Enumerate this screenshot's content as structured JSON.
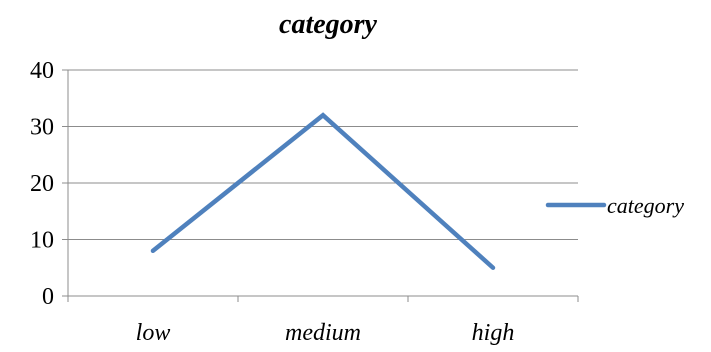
{
  "chart_data": {
    "type": "line",
    "title": "category",
    "categories": [
      "low",
      "medium",
      "high"
    ],
    "series": [
      {
        "name": "category",
        "values": [
          8,
          32,
          5
        ],
        "color": "#4f81bd"
      }
    ],
    "xlabel": "",
    "ylabel": "",
    "ylim": [
      0,
      40
    ],
    "yticks": [
      0,
      10,
      20,
      30,
      40
    ],
    "grid": true,
    "legend_position": "right"
  }
}
